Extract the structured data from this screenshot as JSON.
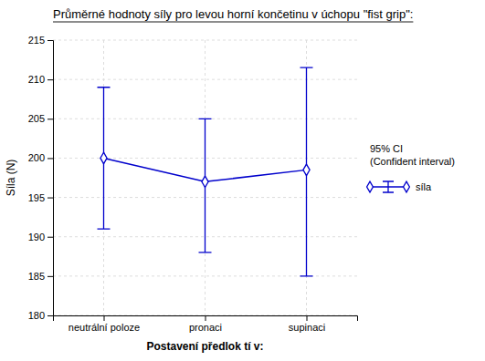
{
  "chart_data": {
    "type": "line",
    "title": "Průměrné hodnoty síly pro levou horní končetinu v úchopu \"fist grip\":",
    "x_label": "Postavení předlok tí v:",
    "y_label": "Síla (N)",
    "categories": [
      "neutrální poloze",
      "pronaci",
      "supinaci"
    ],
    "series": [
      {
        "name": "síla",
        "color": "#0000cc",
        "marker": "diamond",
        "values": [
          200.0,
          197.0,
          198.5
        ],
        "ci_lower": [
          191.0,
          188.0,
          185.0
        ],
        "ci_upper": [
          209.0,
          205.0,
          211.5
        ]
      }
    ],
    "annotations": [
      "95% CI\n(Confident interval)"
    ],
    "ylim": [
      180,
      215
    ],
    "yticks": [
      180,
      185,
      190,
      195,
      200,
      205,
      210,
      215
    ],
    "grid": true,
    "legend": "right"
  }
}
